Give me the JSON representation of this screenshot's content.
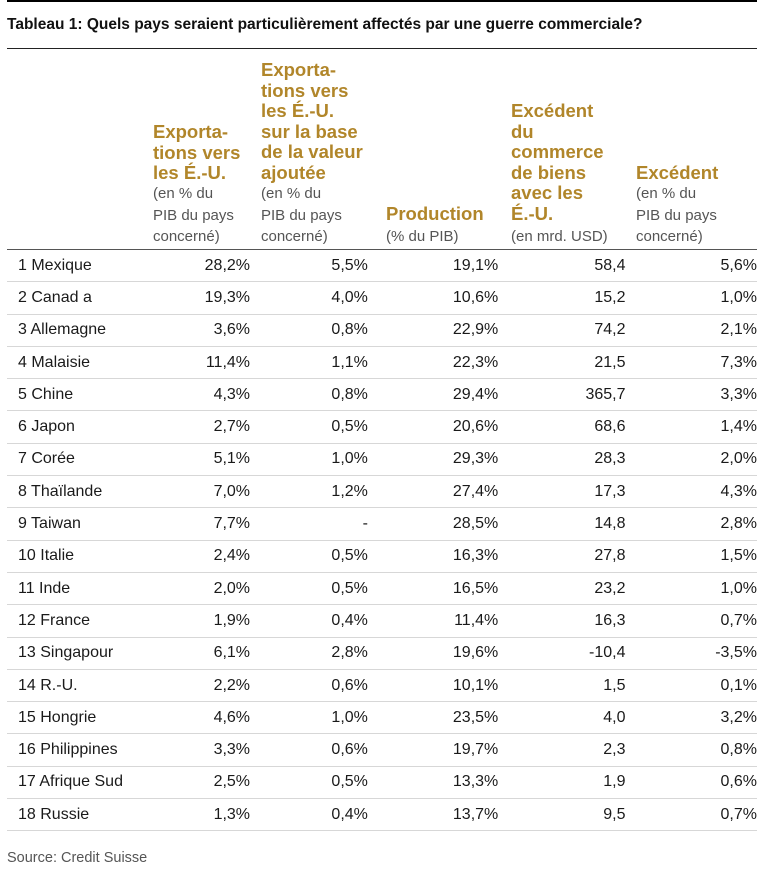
{
  "title": "Tableau 1: Quels pays seraient particulièrement affectés par une guerre commerciale?",
  "columns": [
    {
      "heading": "Exporta-\ntions vers\nles É.-U.",
      "sub": "(en % du\nPIB du pays\nconcerné)"
    },
    {
      "heading": "Exporta-\ntions vers\nles É.-U.\nsur la base\nde la valeur\najoutée",
      "sub": "(en % du\nPIB du pays\nconcerné)"
    },
    {
      "heading": "Production",
      "sub": "(% du PIB)"
    },
    {
      "heading": "Excédent\ndu\ncommerce\nde biens\navec les\nÉ.-U.",
      "sub": "(en mrd. USD)"
    },
    {
      "heading": "Excédent",
      "sub": "(en % du\nPIB du pays\nconcerné)"
    }
  ],
  "rows": [
    {
      "country": "1 Mexique",
      "v1": "28,2%",
      "v2": "5,5%",
      "v3": "19,1%",
      "v4": "58,4",
      "v5": "5,6%"
    },
    {
      "country": "2 Canad a",
      "v1": "19,3%",
      "v2": "4,0%",
      "v3": "10,6%",
      "v4": "15,2",
      "v5": "1,0%"
    },
    {
      "country": "3 Allemagne",
      "v1": "3,6%",
      "v2": "0,8%",
      "v3": "22,9%",
      "v4": "74,2",
      "v5": "2,1%"
    },
    {
      "country": "4 Malaisie",
      "v1": "11,4%",
      "v2": "1,1%",
      "v3": "22,3%",
      "v4": "21,5",
      "v5": "7,3%"
    },
    {
      "country": "5 Chine",
      "v1": "4,3%",
      "v2": "0,8%",
      "v3": "29,4%",
      "v4": "365,7",
      "v5": "3,3%"
    },
    {
      "country": "6 Japon",
      "v1": "2,7%",
      "v2": "0,5%",
      "v3": "20,6%",
      "v4": "68,6",
      "v5": "1,4%"
    },
    {
      "country": "7 Corée",
      "v1": "5,1%",
      "v2": "1,0%",
      "v3": "29,3%",
      "v4": "28,3",
      "v5": "2,0%"
    },
    {
      "country": "8 Thaïlande",
      "v1": "7,0%",
      "v2": "1,2%",
      "v3": "27,4%",
      "v4": "17,3",
      "v5": "4,3%"
    },
    {
      "country": "9 Taiwan",
      "v1": "7,7%",
      "v2": "-",
      "v3": "28,5%",
      "v4": "14,8",
      "v5": "2,8%"
    },
    {
      "country": "10 Italie",
      "v1": "2,4%",
      "v2": "0,5%",
      "v3": "16,3%",
      "v4": "27,8",
      "v5": "1,5%"
    },
    {
      "country": "11 Inde",
      "v1": "2,0%",
      "v2": "0,5%",
      "v3": "16,5%",
      "v4": "23,2",
      "v5": "1,0%"
    },
    {
      "country": "12 France",
      "v1": "1,9%",
      "v2": "0,4%",
      "v3": "11,4%",
      "v4": "16,3",
      "v5": "0,7%"
    },
    {
      "country": "13 Singapour",
      "v1": "6,1%",
      "v2": "2,8%",
      "v3": "19,6%",
      "v4": "-10,4",
      "v5": "-3,5%"
    },
    {
      "country": "14 R.-U.",
      "v1": "2,2%",
      "v2": "0,6%",
      "v3": "10,1%",
      "v4": "1,5",
      "v5": "0,1%"
    },
    {
      "country": "15 Hongrie",
      "v1": "4,6%",
      "v2": "1,0%",
      "v3": "23,5%",
      "v4": "4,0",
      "v5": "3,2%"
    },
    {
      "country": "16 Philippines",
      "v1": "3,3%",
      "v2": "0,6%",
      "v3": "19,7%",
      "v4": "2,3",
      "v5": "0,8%"
    },
    {
      "country": "17 Afrique Sud",
      "v1": "2,5%",
      "v2": "0,5%",
      "v3": "13,3%",
      "v4": "1,9",
      "v5": "0,6%"
    },
    {
      "country": "18 Russie",
      "v1": "1,3%",
      "v2": "0,4%",
      "v3": "13,7%",
      "v4": "9,5",
      "v5": "0,7%"
    }
  ],
  "source": "Source: Credit Suisse",
  "colors": {
    "heading": "#b1862a",
    "subheading": "#555555",
    "text": "#1a1a1a"
  }
}
